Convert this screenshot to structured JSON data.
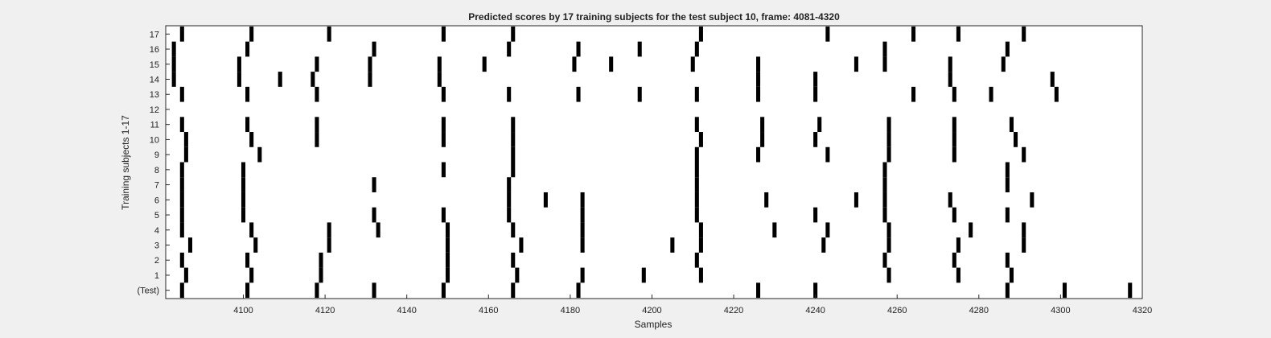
{
  "chart_data": {
    "type": "raster",
    "title": "Predicted scores by 17 training subjects for the test subject 10, frame: 4081-4320",
    "xlabel": "Samples",
    "ylabel": "Training subjects 1-17",
    "xlim": [
      4081,
      4320
    ],
    "xticks": [
      4100,
      4120,
      4140,
      4160,
      4180,
      4200,
      4220,
      4240,
      4260,
      4280,
      4300,
      4320
    ],
    "rows": [
      "(Test)",
      "1",
      "2",
      "3",
      "4",
      "5",
      "6",
      "7",
      "8",
      "9",
      "10",
      "11",
      "12",
      "13",
      "14",
      "15",
      "16",
      "17"
    ],
    "events": [
      [
        4085,
        4101,
        4118,
        4132,
        4149,
        4166,
        4182,
        4226,
        4240,
        4287,
        4301,
        4317
      ],
      [
        4086,
        4102,
        4119,
        4150,
        4167,
        4183,
        4198,
        4212,
        4258,
        4275,
        4288
      ],
      [
        4085,
        4101,
        4119,
        4150,
        4166,
        4211,
        4257,
        4274,
        4287
      ],
      [
        4087,
        4103,
        4121,
        4150,
        4168,
        4183,
        4205,
        4212,
        4242,
        4258,
        4275,
        4291
      ],
      [
        4085,
        4102,
        4121,
        4133,
        4150,
        4166,
        4183,
        4212,
        4230,
        4243,
        4258,
        4278,
        4291
      ],
      [
        4085,
        4100,
        4132,
        4149,
        4165,
        4183,
        4211,
        4240,
        4257,
        4274,
        4287
      ],
      [
        4085,
        4100,
        4165,
        4174,
        4183,
        4211,
        4228,
        4250,
        4257,
        4273,
        4293
      ],
      [
        4085,
        4100,
        4132,
        4165,
        4211,
        4257,
        4287
      ],
      [
        4085,
        4100,
        4149,
        4166,
        4211,
        4257,
        4287
      ],
      [
        4086,
        4104,
        4166,
        4211,
        4226,
        4243,
        4258,
        4274,
        4291
      ],
      [
        4086,
        4102,
        4118,
        4149,
        4166,
        4212,
        4227,
        4240,
        4258,
        4274,
        4289
      ],
      [
        4085,
        4101,
        4118,
        4149,
        4166,
        4211,
        4227,
        4241,
        4258,
        4274,
        4288
      ],
      [],
      [
        4085,
        4101,
        4118,
        4149,
        4165,
        4182,
        4197,
        4211,
        4226,
        4240,
        4264,
        4274,
        4283,
        4299
      ],
      [
        4083,
        4099,
        4109,
        4117,
        4131,
        4148,
        4226,
        4240,
        4273,
        4298
      ],
      [
        4083,
        4099,
        4118,
        4131,
        4148,
        4159,
        4181,
        4190,
        4210,
        4226,
        4250,
        4257,
        4273,
        4286
      ],
      [
        4083,
        4101,
        4132,
        4165,
        4182,
        4197,
        4211,
        4257,
        4287
      ],
      [
        4085,
        4102,
        4121,
        4149,
        4166,
        4212,
        4243,
        4264,
        4275,
        4291
      ]
    ],
    "colors": {
      "mark": "#000000",
      "plot_bg": "#ffffff",
      "figure_bg": "#f0f0f0",
      "axis": "#262626"
    }
  }
}
